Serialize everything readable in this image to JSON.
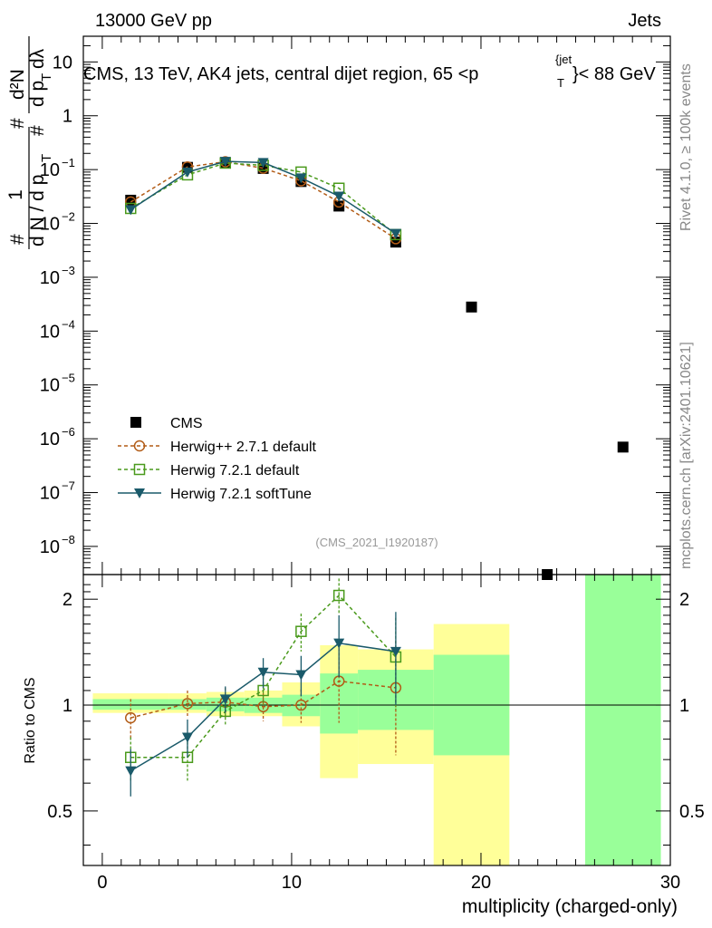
{
  "header": {
    "left": "13000 GeV pp",
    "right": "Jets"
  },
  "side_labels": {
    "rivet": "Rivet 4.1.0, ≥ 100k events",
    "mcplots": "mcplots.cern.ch [arXiv:2401.10621]"
  },
  "chart_data": {
    "type": "scatter",
    "title": "CMS, 13 TeV, AK4 jets, central dijet region, 65 <p",
    "title_sub": "T",
    "title_sup": "{jet",
    "title_end": "}< 88 GeV",
    "watermark": "(CMS_2021_I1920187)",
    "xlabel": "multiplicity (charged-only)",
    "ylabel_main": {
      "num": "1",
      "hash1": "#",
      "den": "d N / d p",
      "den_sub": "T",
      "hash2": "#",
      "frac_top": "d²N",
      "frac_bot": "d p",
      "frac_bot_sub": "T",
      "frac_bot_end": "dλ",
      "hash3": "#"
    },
    "ylabel_ratio": "Ratio to CMS",
    "xlim": [
      -1,
      30
    ],
    "ylim_main": [
      3e-09,
      30
    ],
    "ylim_ratio": [
      0.35,
      2.35
    ],
    "x_ticks": [
      0,
      10,
      20,
      30
    ],
    "x_tick_labels": [
      "0",
      "10",
      "20",
      "30"
    ],
    "y_ticks_main": [
      {
        "exp": "1",
        "plain": "10",
        "label": "10"
      },
      {
        "exp": "0",
        "plain": "1",
        "label": "1"
      },
      {
        "exp": "-1",
        "label": "10"
      },
      {
        "exp": "-2",
        "label": "10"
      },
      {
        "exp": "-3",
        "label": "10"
      },
      {
        "exp": "-4",
        "label": "10"
      },
      {
        "exp": "-5",
        "label": "10"
      },
      {
        "exp": "-6",
        "label": "10"
      },
      {
        "exp": "-7",
        "label": "10"
      },
      {
        "exp": "-8",
        "label": "10"
      }
    ],
    "y_ticks_ratio": [
      0.5,
      1,
      2
    ],
    "y_tick_labels_ratio": [
      "0.5",
      "1",
      "2"
    ],
    "legend": [
      {
        "name": "CMS",
        "color": "#000000",
        "style": "square"
      },
      {
        "name": "Herwig++ 2.7.1 default",
        "color": "#b25c17",
        "style": "circle-dashed"
      },
      {
        "name": "Herwig 7.2.1 default",
        "color": "#4a9a1c",
        "style": "square-dashed"
      },
      {
        "name": "Herwig 7.2.1 softTune",
        "color": "#1a5a6a",
        "style": "triangle-solid"
      }
    ],
    "data": {
      "x": [
        1.5,
        4.5,
        6.5,
        8.5,
        10.5,
        12.5,
        15.5,
        19.5,
        23.5,
        27.5
      ],
      "y": [
        0.027,
        0.11,
        0.135,
        0.105,
        0.06,
        0.021,
        0.0045,
        0.00028,
        3e-09,
        7e-07
      ]
    },
    "series": [
      {
        "name": "Herwig++ 2.7.1 default",
        "x": [
          1.5,
          4.5,
          6.5,
          8.5,
          10.5,
          12.5,
          15.5
        ],
        "y": [
          0.025,
          0.112,
          0.14,
          0.106,
          0.062,
          0.025,
          0.0052
        ],
        "ratio": [
          0.92,
          1.01,
          1.02,
          0.99,
          1.0,
          1.17,
          1.12
        ],
        "ratio_err": [
          0.12,
          0.09,
          0.1,
          0.09,
          0.11,
          0.28,
          0.4
        ]
      },
      {
        "name": "Herwig 7.2.1 default",
        "x": [
          1.5,
          4.5,
          6.5,
          8.5,
          10.5,
          12.5,
          15.5
        ],
        "y": [
          0.019,
          0.08,
          0.132,
          0.12,
          0.09,
          0.045,
          0.0062
        ],
        "ratio": [
          0.71,
          0.71,
          0.96,
          1.1,
          1.62,
          2.05,
          1.37
        ],
        "ratio_err": [
          0.1,
          0.1,
          0.08,
          0.1,
          0.2,
          0.24,
          0.4
        ]
      },
      {
        "name": "Herwig 7.2.1 softTune",
        "x": [
          1.5,
          4.5,
          6.5,
          8.5,
          10.5,
          12.5,
          15.5
        ],
        "y": [
          0.018,
          0.09,
          0.142,
          0.135,
          0.07,
          0.032,
          0.0065
        ],
        "ratio": [
          0.65,
          0.81,
          1.04,
          1.24,
          1.22,
          1.5,
          1.42
        ],
        "ratio_err": [
          0.1,
          0.1,
          0.09,
          0.12,
          0.16,
          0.3,
          0.42
        ]
      }
    ],
    "bands": [
      {
        "x0": -0.5,
        "x1": 3.5,
        "green": [
          0.97,
          1.04
        ],
        "yellow": [
          0.95,
          1.08
        ]
      },
      {
        "x0": 3.5,
        "x1": 5.5,
        "green": [
          0.97,
          1.04
        ],
        "yellow": [
          0.95,
          1.08
        ]
      },
      {
        "x0": 5.5,
        "x1": 7.5,
        "green": [
          0.96,
          1.05
        ],
        "yellow": [
          0.93,
          1.09
        ]
      },
      {
        "x0": 7.5,
        "x1": 9.5,
        "green": [
          0.95,
          1.05
        ],
        "yellow": [
          0.93,
          1.1
        ]
      },
      {
        "x0": 9.5,
        "x1": 11.5,
        "green": [
          0.93,
          1.07
        ],
        "yellow": [
          0.87,
          1.16
        ]
      },
      {
        "x0": 11.5,
        "x1": 13.5,
        "green": [
          0.83,
          1.23
        ],
        "yellow": [
          0.62,
          1.48
        ]
      },
      {
        "x0": 13.5,
        "x1": 17.5,
        "green": [
          0.85,
          1.26
        ],
        "yellow": [
          0.68,
          1.44
        ]
      },
      {
        "x0": 17.5,
        "x1": 21.5,
        "green": [
          0.72,
          1.39
        ],
        "yellow": [
          0.3,
          1.7
        ]
      },
      {
        "x0": 25.5,
        "x1": 29.5,
        "green": [
          0.3,
          2.4
        ],
        "yellow": null
      }
    ]
  }
}
